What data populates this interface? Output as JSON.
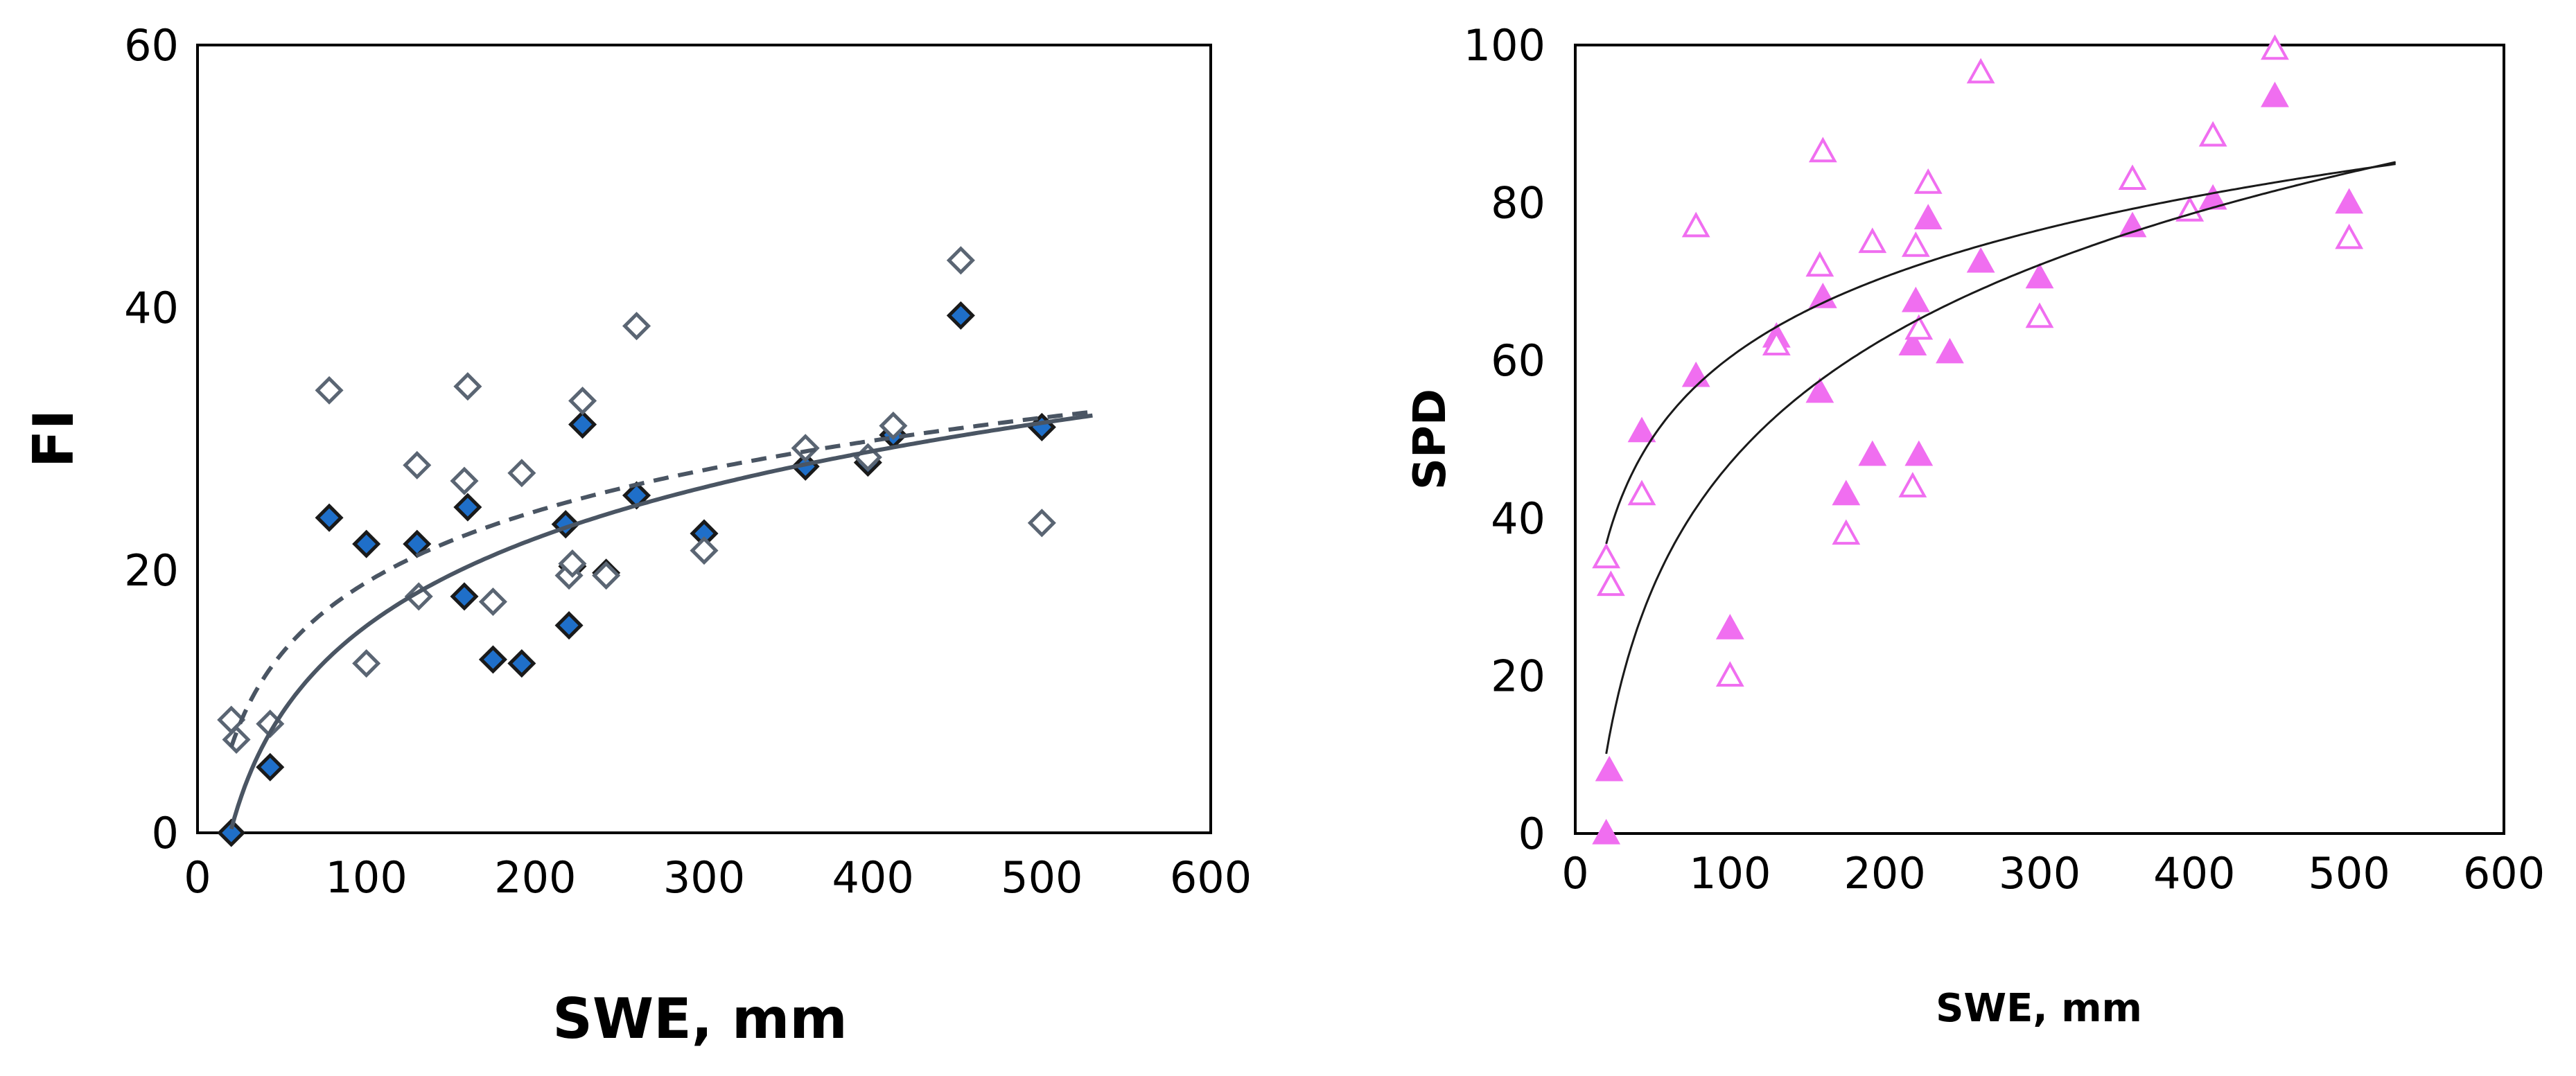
{
  "chart_data": [
    {
      "type": "scatter",
      "xlabel": "SWE, mm",
      "ylabel": "FI",
      "xlim": [
        0,
        600
      ],
      "ylim": [
        0,
        60
      ],
      "xticks": [
        "0",
        "100",
        "200",
        "300",
        "400",
        "500",
        "600"
      ],
      "yticks": [
        "0",
        "20",
        "40",
        "60"
      ],
      "grid": false,
      "series": [
        {
          "name": "filled",
          "marker": "diamond-filled",
          "color": "#1f6fc9",
          "edge": "#1a1a1a",
          "x": [
            20,
            43,
            78,
            100,
            130,
            158,
            160,
            175,
            192,
            218,
            220,
            222,
            228,
            242,
            260,
            300,
            360,
            397,
            412,
            452,
            500
          ],
          "y": [
            0,
            5,
            24,
            22,
            22,
            18,
            24.8,
            13.2,
            12.9,
            23.5,
            15.8,
            20.3,
            31.1,
            19.8,
            25.7,
            22.8,
            27.9,
            28.2,
            30.3,
            39.4,
            30.9
          ]
        },
        {
          "name": "open",
          "marker": "diamond-open",
          "color": "#ffffff",
          "edge": "#5a6573",
          "x": [
            20,
            23,
            43,
            78,
            100,
            130,
            131,
            158,
            160,
            175,
            192,
            220,
            222,
            228,
            242,
            260,
            300,
            360,
            397,
            412,
            452,
            500
          ],
          "y": [
            8.6,
            7.1,
            8.3,
            33.7,
            12.9,
            28,
            18,
            26.8,
            34,
            17.6,
            27.4,
            19.6,
            20.5,
            32.9,
            19.6,
            38.6,
            21.5,
            29.3,
            28.6,
            31,
            43.6,
            23.6
          ]
        }
      ],
      "fits": [
        {
          "name": "fit-filled",
          "style": "solid",
          "color": "#4a5563",
          "a": -28.5,
          "b": 9.61
        },
        {
          "name": "fit-open",
          "style": "dashed",
          "color": "#4a5563",
          "a": -16.8,
          "b": 7.79
        }
      ]
    },
    {
      "type": "scatter",
      "xlabel": "SWE, mm",
      "ylabel": "SPD",
      "xlim": [
        0,
        600
      ],
      "ylim": [
        0,
        100
      ],
      "xticks": [
        "0",
        "100",
        "200",
        "300",
        "400",
        "500",
        "600"
      ],
      "yticks": [
        "0",
        "20",
        "40",
        "60",
        "80",
        "100"
      ],
      "grid": false,
      "series": [
        {
          "name": "filled",
          "marker": "triangle-filled",
          "color": "#f06ef0",
          "edge": "#f06ef0",
          "x": [
            20,
            22,
            43,
            78,
            100,
            130,
            158,
            160,
            175,
            192,
            218,
            220,
            222,
            228,
            242,
            262,
            300,
            360,
            397,
            412,
            452,
            500
          ],
          "y": [
            0,
            8,
            51,
            58,
            26,
            63,
            56,
            68,
            43,
            48,
            62,
            67.5,
            48,
            78,
            61,
            72.5,
            70.5,
            77,
            79,
            80.5,
            93.5,
            80
          ]
        },
        {
          "name": "open",
          "marker": "triangle-open",
          "color": "#ffffff",
          "edge": "#f06ef0",
          "x": [
            20,
            23,
            43,
            78,
            100,
            130,
            158,
            160,
            175,
            192,
            218,
            220,
            222,
            228,
            262,
            300,
            360,
            397,
            412,
            452,
            500
          ],
          "y": [
            35,
            31.5,
            43,
            77,
            20,
            62,
            72,
            86.5,
            38,
            75,
            44,
            74.5,
            64,
            82.5,
            96.5,
            65.5,
            83,
            79,
            88.5,
            99.5,
            75.5
          ]
        }
      ],
      "fits": [
        {
          "name": "fit-filled",
          "style": "solid",
          "color": "#1a1a1a",
          "a": -58.5,
          "b": 22.9
        },
        {
          "name": "fit-open",
          "style": "solid",
          "color": "#1a1a1a",
          "a": -7.3,
          "b": 14.7
        }
      ]
    }
  ]
}
